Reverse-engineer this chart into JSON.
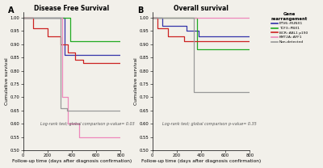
{
  "panel_A_title": "Disease Free Survival",
  "panel_B_title": "Overall survival",
  "xlabel": "Follow-up time (days after diagnosis confirmation)",
  "ylabel": "Cumulative survival",
  "ylim": [
    0.5,
    1.02
  ],
  "xlim": [
    0,
    800
  ],
  "yticks": [
    0.5,
    0.55,
    0.6,
    0.65,
    0.7,
    0.75,
    0.8,
    0.85,
    0.9,
    0.95,
    1.0
  ],
  "ytick_labels": [
    "0.50",
    "0.55",
    "0.60",
    "0.65",
    "0.70",
    "0.75",
    "0.80",
    "0.85",
    "0.90",
    "0.95",
    "1.00"
  ],
  "xticks": [
    0,
    200,
    400,
    600,
    800
  ],
  "xtick_labels": [
    "0",
    "200",
    "400",
    "600",
    "800"
  ],
  "pvalue_A": "Log-rank test; global comparison p-value= 0.03",
  "pvalue_B": "Log-rank test; global comparison p-value= 0.35",
  "legend_title": "Gene\nrearrangement",
  "legend_labels": [
    "ETV6::RUNX1",
    "TCF3::PBX1",
    "BCR::ABL1 p190",
    "KMT2A::AFF1",
    "Non-detected"
  ],
  "colors": {
    "ETV6::RUNX1": "#3333aa",
    "TCF3::PBX1": "#22aa22",
    "BCR::ABL1 p190": "#cc2222",
    "KMT2A::AFF1": "#ee88bb",
    "Non-detected": "#999999"
  },
  "curves_A": {
    "ETV6::RUNX1": {
      "x": [
        0,
        340,
        340,
        370,
        370,
        800
      ],
      "y": [
        1.0,
        1.0,
        0.86,
        0.86,
        0.86,
        0.86
      ]
    },
    "TCF3::PBX1": {
      "x": [
        0,
        390,
        390,
        800
      ],
      "y": [
        1.0,
        1.0,
        0.91,
        0.91
      ]
    },
    "BCR::ABL1 p190": {
      "x": [
        0,
        80,
        80,
        200,
        200,
        310,
        310,
        370,
        370,
        430,
        430,
        490,
        490,
        800
      ],
      "y": [
        1.0,
        1.0,
        0.96,
        0.96,
        0.93,
        0.93,
        0.9,
        0.9,
        0.87,
        0.87,
        0.84,
        0.84,
        0.83,
        0.83
      ]
    },
    "KMT2A::AFF1": {
      "x": [
        0,
        320,
        320,
        370,
        370,
        460,
        460,
        800
      ],
      "y": [
        1.0,
        1.0,
        0.7,
        0.7,
        0.6,
        0.6,
        0.55,
        0.55
      ]
    },
    "Non-detected": {
      "x": [
        0,
        310,
        310,
        360,
        360,
        800
      ],
      "y": [
        1.0,
        1.0,
        0.66,
        0.66,
        0.65,
        0.65
      ]
    }
  },
  "curves_B": {
    "ETV6::RUNX1": {
      "x": [
        0,
        80,
        80,
        280,
        280,
        380,
        380,
        800
      ],
      "y": [
        1.0,
        1.0,
        0.97,
        0.97,
        0.95,
        0.95,
        0.93,
        0.93
      ]
    },
    "TCF3::PBX1": {
      "x": [
        0,
        370,
        370,
        800
      ],
      "y": [
        1.0,
        1.0,
        0.88,
        0.88
      ]
    },
    "BCR::ABL1 p190": {
      "x": [
        0,
        40,
        40,
        130,
        130,
        260,
        260,
        800
      ],
      "y": [
        1.0,
        1.0,
        0.96,
        0.96,
        0.93,
        0.93,
        0.91,
        0.91
      ]
    },
    "KMT2A::AFF1": {
      "x": [
        0,
        800
      ],
      "y": [
        1.0,
        1.0
      ]
    },
    "Non-detected": {
      "x": [
        0,
        340,
        340,
        800
      ],
      "y": [
        1.0,
        1.0,
        0.72,
        0.72
      ]
    }
  },
  "background_color": "#f2f0ea",
  "linewidth": 0.9,
  "title_fontsize": 5.5,
  "label_fontsize": 4.2,
  "tick_fontsize": 3.8,
  "pval_fontsize": 3.5,
  "legend_fontsize": 3.2,
  "legend_title_fontsize": 3.8
}
